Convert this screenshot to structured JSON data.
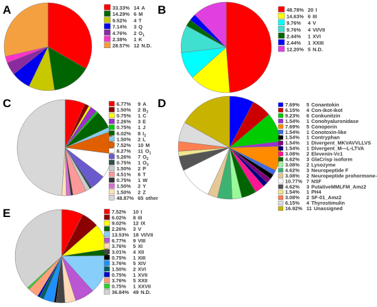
{
  "chart_data": [
    {
      "panel": "A",
      "type": "pie",
      "slices": [
        {
          "pct": "33.33%",
          "count": "14",
          "label": "A",
          "value": 33.33,
          "color": "#ff0000"
        },
        {
          "pct": "14.29%",
          "count": "6",
          "label": "M",
          "value": 14.29,
          "color": "#006400"
        },
        {
          "pct": "9.52%",
          "count": "4",
          "label": "T",
          "value": 9.52,
          "color": "#c8c800"
        },
        {
          "pct": "7.14%",
          "count": "3",
          "label": "Q",
          "value": 7.14,
          "color": "#0000ee"
        },
        {
          "pct": "4.76%",
          "count": "2",
          "label": "O",
          "sub": "1",
          "value": 4.76,
          "color": "#8b2a9e"
        },
        {
          "pct": "2.38%",
          "count": "1",
          "label": "K",
          "value": 2.38,
          "color": "#ff33cc"
        },
        {
          "pct": "28.57%",
          "count": "12",
          "label": "N.D.",
          "value": 28.57,
          "color": "#f5a040"
        }
      ]
    },
    {
      "panel": "B",
      "type": "pie",
      "slices": [
        {
          "pct": "48.78%",
          "count": "20",
          "label": "I",
          "value": 48.78,
          "color": "#ff0000"
        },
        {
          "pct": "14.63%",
          "count": "6",
          "label": "III",
          "value": 14.63,
          "color": "#ffff00"
        },
        {
          "pct": "9.76%",
          "count": "4",
          "label": "V",
          "value": 9.76,
          "color": "#00ffff"
        },
        {
          "pct": "9.76%",
          "count": "4",
          "label": "VI/VII",
          "value": 9.76,
          "color": "#40e0d0"
        },
        {
          "pct": "2.44%",
          "count": "1",
          "label": "XVI",
          "value": 2.44,
          "color": "#006400"
        },
        {
          "pct": "2.44%",
          "count": "1",
          "label": "XXIII",
          "value": 2.44,
          "color": "#0000ff"
        },
        {
          "pct": "12.20%",
          "count": "5",
          "label": "N.D.",
          "value": 12.2,
          "color": "#e040e0"
        }
      ]
    },
    {
      "panel": "C",
      "type": "pie",
      "slices": [
        {
          "pct": "6.77%",
          "count": "9",
          "label": "A",
          "value": 6.77,
          "color": "#ff0000"
        },
        {
          "pct": "1.50%",
          "count": "2",
          "label": "B",
          "sub": "2",
          "value": 1.5,
          "color": "#8b0000"
        },
        {
          "pct": "0.75%",
          "count": "1",
          "label": "C",
          "value": 0.75,
          "color": "#ffff00"
        },
        {
          "pct": "2.26%",
          "count": "3",
          "label": "E",
          "value": 2.26,
          "color": "#9932cc"
        },
        {
          "pct": "0.75%",
          "count": "1",
          "label": "J",
          "value": 0.75,
          "color": "#00cc00"
        },
        {
          "pct": "6.02%",
          "count": "8",
          "label": "I",
          "sub": "2",
          "value": 6.02,
          "color": "#006400"
        },
        {
          "pct": "1.50%",
          "count": "2",
          "label": "L",
          "value": 1.5,
          "color": "#87ceeb"
        },
        {
          "pct": "7.52%",
          "count": "10",
          "label": "M",
          "value": 7.52,
          "color": "#e06000"
        },
        {
          "pct": "8.27%",
          "count": "11",
          "label": "O",
          "sub": "1",
          "value": 8.27,
          "color": "#ffffff"
        },
        {
          "pct": "5.26%",
          "count": "7",
          "label": "O",
          "sub": "2",
          "value": 5.26,
          "color": "#6a5acd"
        },
        {
          "pct": "0.75%",
          "count": "1",
          "label": "O",
          "sub": "3",
          "value": 0.75,
          "color": "#2f4f4f"
        },
        {
          "pct": "1.50%",
          "count": "2",
          "label": "P",
          "value": 1.5,
          "color": "#cccccc"
        },
        {
          "pct": "4.51%",
          "count": "6",
          "label": "T",
          "value": 4.51,
          "color": "#ff9999"
        },
        {
          "pct": "0.75%",
          "count": "1",
          "label": "W",
          "value": 0.75,
          "color": "#333333"
        },
        {
          "pct": "1.50%",
          "count": "2",
          "label": "Y",
          "value": 1.5,
          "color": "#da70d6"
        },
        {
          "pct": "1.50%",
          "count": "2",
          "label": "Z",
          "value": 1.5,
          "color": "#ffe4b5"
        },
        {
          "pct": "48.87%",
          "count": "65",
          "label": "other",
          "value": 48.87,
          "color": "#d8d8d8"
        }
      ]
    },
    {
      "panel": "D",
      "type": "pie",
      "slices": [
        {
          "pct": "7.69%",
          "count": "5",
          "label": "Conantokin",
          "value": 7.69,
          "color": "#0000ff"
        },
        {
          "pct": "6.15%",
          "count": "4",
          "label": "Con-ikot-ikot",
          "value": 6.15,
          "color": "#cc0000"
        },
        {
          "pct": "9.23%",
          "count": "6",
          "label": "Conkunitzin",
          "value": 9.23,
          "color": "#00cc00"
        },
        {
          "pct": "1.54%",
          "count": "1",
          "label": "Conohyaluronidase",
          "value": 1.54,
          "color": "#9932cc"
        },
        {
          "pct": "7.69%",
          "count": "5",
          "label": "Conoporin",
          "value": 7.69,
          "color": "#ff8c00"
        },
        {
          "pct": "1.54%",
          "count": "1",
          "label": "Conotoxin-like",
          "value": 1.54,
          "color": "#4169e1"
        },
        {
          "pct": "1.54%",
          "count": "1",
          "label": "Contryphan",
          "value": 1.54,
          "color": "#000000"
        },
        {
          "pct": "1.54%",
          "count": "1",
          "label": "Divergent_MKVAVVLLVS",
          "value": 1.54,
          "color": "#800080"
        },
        {
          "pct": "1.54%",
          "count": "1",
          "label": "Divergent_M---L-LTVA",
          "value": 1.54,
          "color": "#000080"
        },
        {
          "pct": "3.08%",
          "count": "2",
          "label": "Elevenin-Vc1",
          "value": 3.08,
          "color": "#ff1493"
        },
        {
          "pct": "4.62%",
          "count": "3",
          "label": "GlaCrisp isoform",
          "value": 4.62,
          "color": "#006400"
        },
        {
          "pct": "3.08%",
          "count": "2",
          "label": "Lysozyme",
          "value": 3.08,
          "color": "#98fb98"
        },
        {
          "pct": "4.62%",
          "count": "3",
          "label": "Neuropeptide F",
          "value": 4.62,
          "color": "#3cb371"
        },
        {
          "pct": "3.08%",
          "count": "2",
          "label": "Neuropeptide prohormone-4",
          "value": 3.08,
          "color": "#e6c896"
        },
        {
          "pct": "10.77%",
          "count": "7",
          "label": "NSF",
          "value": 10.77,
          "color": "#ffffff"
        },
        {
          "pct": "4.62%",
          "count": "3",
          "label": "PutativeMMLFM_Amz2",
          "value": 4.62,
          "color": "#555555"
        },
        {
          "pct": "1.54%",
          "count": "1",
          "label": "PH4",
          "value": 1.54,
          "color": "#f0e68c"
        },
        {
          "pct": "3.08%",
          "count": "2",
          "label": "SF-01_Amz2",
          "value": 3.08,
          "color": "#ff7f50"
        },
        {
          "pct": "6.15%",
          "count": "4",
          "label": "Thyrostimulin",
          "value": 6.15,
          "color": "#dcdcdc"
        },
        {
          "pct": "16.92%",
          "count": "11",
          "label": "Unassigned",
          "value": 16.92,
          "color": "#c8b400"
        }
      ]
    },
    {
      "panel": "E",
      "type": "pie",
      "slices": [
        {
          "pct": "7.52%",
          "count": "10",
          "label": "I",
          "value": 7.52,
          "color": "#ff0000"
        },
        {
          "pct": "6.02%",
          "count": "8",
          "label": "III",
          "value": 6.02,
          "color": "#8b0000"
        },
        {
          "pct": "9.02%",
          "count": "12",
          "label": "IX",
          "value": 9.02,
          "color": "#ffff00"
        },
        {
          "pct": "2.26%",
          "count": "3",
          "label": "V",
          "value": 2.26,
          "color": "#006400"
        },
        {
          "pct": "13.53%",
          "count": "18",
          "label": "VI/VII",
          "value": 13.53,
          "color": "#87cefa"
        },
        {
          "pct": "6.77%",
          "count": "9",
          "label": "VIII",
          "value": 6.77,
          "color": "#ba55d3"
        },
        {
          "pct": "3.76%",
          "count": "5",
          "label": "XI",
          "value": 3.76,
          "color": "#ffdab9"
        },
        {
          "pct": "3.01%",
          "count": "4",
          "label": "XII",
          "value": 3.01,
          "color": "#444444"
        },
        {
          "pct": "0.75%",
          "count": "1",
          "label": "XIII",
          "value": 0.75,
          "color": "#000000"
        },
        {
          "pct": "3.76%",
          "count": "5",
          "label": "XIV",
          "value": 3.76,
          "color": "#1e90ff"
        },
        {
          "pct": "1.50%",
          "count": "2",
          "label": "XVI",
          "value": 1.5,
          "color": "#006060"
        },
        {
          "pct": "0.75%",
          "count": "1",
          "label": "XVII",
          "value": 0.75,
          "color": "#0000cd"
        },
        {
          "pct": "3.76%",
          "count": "5",
          "label": "XXII",
          "value": 3.76,
          "color": "#ffa07a"
        },
        {
          "pct": "0.75%",
          "count": "1",
          "label": "XXVII",
          "value": 0.75,
          "color": "#32cd32"
        },
        {
          "pct": "36.84%",
          "count": "49",
          "label": "N.D.",
          "value": 36.84,
          "color": "#d3d3d3"
        }
      ]
    }
  ]
}
